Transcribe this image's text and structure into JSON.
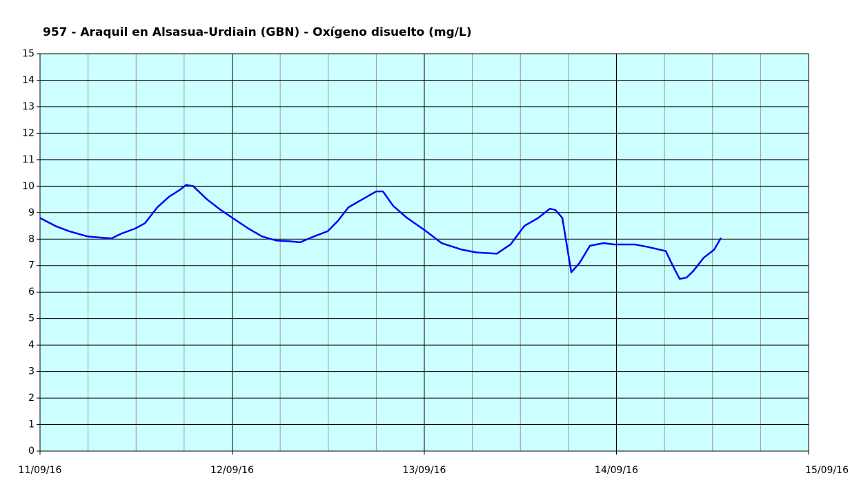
{
  "chart_data": {
    "type": "line",
    "title": "957 - Araquil en Alsasua-Urdiain (GBN) - Oxígeno disuelto (mg/L)",
    "x": [
      0,
      1.9,
      3.62,
      5.95,
      7.93,
      8.96,
      10.08,
      11.89,
      13.1,
      14.65,
      16.11,
      17.41,
      18.27,
      19.13,
      20.86,
      22.58,
      24.05,
      26.03,
      27.75,
      29.48,
      31.2,
      32.49,
      33.79,
      35.94,
      37.23,
      38.52,
      40.25,
      41.97,
      42.83,
      44.13,
      45.85,
      48.0,
      50.16,
      52.74,
      54.47,
      57.05,
      58.77,
      60.5,
      62.22,
      63.69,
      64.38,
      65.24,
      66.36,
      67.39,
      68.68,
      70.41,
      71.7,
      74.29,
      76.01,
      78.16,
      79.03,
      79.89,
      80.75,
      81.61,
      82.9,
      84.2,
      85.06
    ],
    "series": [
      {
        "name": "Oxígeno disuelto",
        "color": "#0000ff",
        "values": [
          8.8,
          8.5,
          8.3,
          8.1,
          8.05,
          8.03,
          8.2,
          8.4,
          8.6,
          9.2,
          9.6,
          9.85,
          10.05,
          10.0,
          9.5,
          9.1,
          8.8,
          8.4,
          8.1,
          7.95,
          7.92,
          7.88,
          8.05,
          8.3,
          8.7,
          9.2,
          9.5,
          9.8,
          9.8,
          9.25,
          8.8,
          8.35,
          7.85,
          7.6,
          7.5,
          7.45,
          7.8,
          8.5,
          8.8,
          9.15,
          9.1,
          8.8,
          6.75,
          7.1,
          7.75,
          7.85,
          7.8,
          7.8,
          7.7,
          7.55,
          7.0,
          6.5,
          6.55,
          6.8,
          7.3,
          7.6,
          8.05
        ]
      }
    ],
    "xlim": [
      0,
      96
    ],
    "xticks": [
      {
        "value": 0,
        "label": "11/09/16"
      },
      {
        "value": 24,
        "label": "12/09/16"
      },
      {
        "value": 48,
        "label": "13/09/16"
      },
      {
        "value": 72,
        "label": "14/09/16"
      },
      {
        "value": 96,
        "label": "15/09/16"
      }
    ],
    "x_minor_ticks": [
      6,
      12,
      18,
      30,
      36,
      42,
      54,
      60,
      66,
      78,
      84,
      90
    ],
    "ylim": [
      0,
      15
    ],
    "yticks": [
      0,
      1,
      2,
      3,
      4,
      5,
      6,
      7,
      8,
      9,
      10,
      11,
      12,
      13,
      14,
      15
    ],
    "grid": true,
    "background": "#ccffff"
  }
}
